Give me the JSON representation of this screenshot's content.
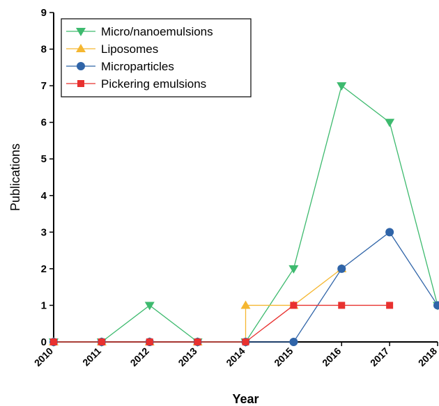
{
  "chart_data": {
    "type": "line",
    "xlabel": "Year",
    "ylabel": "Publications",
    "x": [
      "2010",
      "2011",
      "2012",
      "2013",
      "2014",
      "2015",
      "2016",
      "2017",
      "2018"
    ],
    "xlim": [
      2010,
      2018
    ],
    "ylim": [
      0,
      9
    ],
    "yticks": [
      "0",
      "1",
      "2",
      "3",
      "4",
      "5",
      "6",
      "7",
      "8",
      "9"
    ],
    "grid": false,
    "legend_position": "top-left",
    "series": [
      {
        "name": "Micro/nanoemulsions",
        "color": "#3dba6e",
        "marker": "triangle-down",
        "points": [
          [
            2010,
            0
          ],
          [
            2011,
            0
          ],
          [
            2012,
            1
          ],
          [
            2013,
            0
          ],
          [
            2014,
            0
          ],
          [
            2015,
            2
          ],
          [
            2016,
            7
          ],
          [
            2017,
            6
          ],
          [
            2018,
            1
          ]
        ]
      },
      {
        "name": "Liposomes",
        "color": "#f5b731",
        "marker": "triangle-up",
        "step": true,
        "points": [
          [
            2010,
            0
          ],
          [
            2011,
            0
          ],
          [
            2012,
            0
          ],
          [
            2013,
            0
          ],
          [
            2014,
            0
          ],
          [
            2014,
            1
          ],
          [
            2015,
            1
          ],
          [
            2016,
            2
          ]
        ]
      },
      {
        "name": "Microparticles",
        "color": "#2f64a8",
        "marker": "circle",
        "points": [
          [
            2010,
            0
          ],
          [
            2011,
            0
          ],
          [
            2012,
            0
          ],
          [
            2013,
            0
          ],
          [
            2014,
            0
          ],
          [
            2015,
            0
          ],
          [
            2016,
            2
          ],
          [
            2017,
            3
          ],
          [
            2018,
            1
          ]
        ]
      },
      {
        "name": "Pickering emulsions",
        "color": "#e8312f",
        "marker": "square",
        "points": [
          [
            2010,
            0
          ],
          [
            2011,
            0
          ],
          [
            2012,
            0
          ],
          [
            2013,
            0
          ],
          [
            2014,
            0
          ],
          [
            2015,
            1
          ],
          [
            2016,
            1
          ],
          [
            2017,
            1
          ]
        ]
      }
    ]
  }
}
